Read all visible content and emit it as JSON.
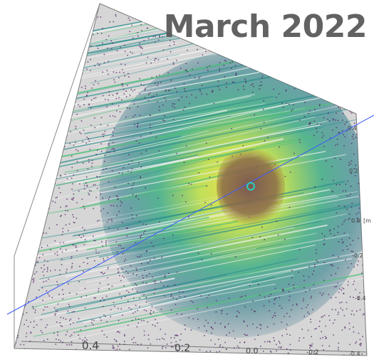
{
  "overlay": {
    "title": "March 2022"
  },
  "axis_labels": {
    "bottom_ticks": [
      "0.4",
      "0.2",
      "0.0",
      "-0.2",
      "-0.4"
    ],
    "right_ticks": [
      "0.4",
      "0.2",
      "0.0",
      "-0.2",
      "-0.4"
    ],
    "right_unit": "[m"
  },
  "colors": {
    "background": "#ffffff",
    "panel": "#d8d8d8",
    "noise": "#4b1a5e",
    "teal": "#2a8c8c",
    "green": "#4fbf7a",
    "yellow": "#d8e33a",
    "core": "#8a5a4a",
    "beam_axis": "#3b5bff",
    "streak": "#f2f2f2"
  },
  "icons": {
    "viewer": "3d-point-cloud-volume"
  }
}
